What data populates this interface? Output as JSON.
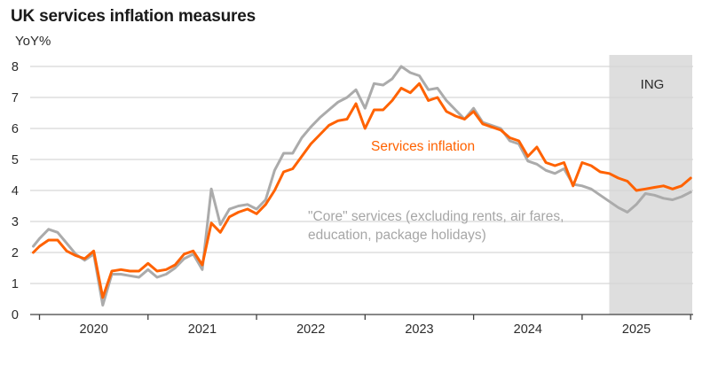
{
  "chart_data": {
    "type": "line",
    "title": "UK services inflation measures",
    "ylabel": "YoY%",
    "xlabel": "",
    "ylim": [
      0,
      8
    ],
    "y_tick_labels": [
      "0",
      "1",
      "2",
      "3",
      "4",
      "5",
      "6",
      "7",
      "8"
    ],
    "x_tick_labels": [
      "2020",
      "2021",
      "2022",
      "2023",
      "2024",
      "2025"
    ],
    "grid": "horizontal",
    "legend_position": "inline-annotations",
    "start_month": "2019-12",
    "frequency": "monthly",
    "forecast_band_start": "2025-04",
    "forecast_band_color": "#DEDEDE",
    "series": [
      {
        "name": "Services inflation",
        "color": "#FF6200",
        "values": [
          2.0,
          2.2,
          2.4,
          2.4,
          2.05,
          1.9,
          1.8,
          2.05,
          0.55,
          1.4,
          1.45,
          1.4,
          1.4,
          1.65,
          1.4,
          1.45,
          1.6,
          1.95,
          2.05,
          1.6,
          2.95,
          2.65,
          3.15,
          3.3,
          3.4,
          3.25,
          3.55,
          4.0,
          4.6,
          4.7,
          5.1,
          5.5,
          5.8,
          6.1,
          6.25,
          6.3,
          6.8,
          6.0,
          6.6,
          6.6,
          6.9,
          7.3,
          7.15,
          7.45,
          6.9,
          7.0,
          6.55,
          6.4,
          6.3,
          6.55,
          6.15,
          6.05,
          5.95,
          5.7,
          5.6,
          5.1,
          5.4,
          4.9,
          4.8,
          4.9,
          4.15,
          4.9,
          4.8,
          4.6,
          4.55,
          4.4,
          4.3,
          4.0,
          4.05,
          4.1,
          4.15,
          4.05,
          4.15,
          4.4
        ]
      },
      {
        "name": "\"Core\" services (excluding rents, air fares, education, package holidays)",
        "color": "#ABABAB",
        "values": [
          2.2,
          2.45,
          2.75,
          2.65,
          2.3,
          1.95,
          1.75,
          1.95,
          0.3,
          1.3,
          1.3,
          1.25,
          1.2,
          1.45,
          1.2,
          1.3,
          1.5,
          1.8,
          1.95,
          1.45,
          4.05,
          2.9,
          3.4,
          3.5,
          3.55,
          3.4,
          3.7,
          4.65,
          5.2,
          5.2,
          5.7,
          6.05,
          6.35,
          6.6,
          6.85,
          7.0,
          7.25,
          6.65,
          7.45,
          7.4,
          7.6,
          8.0,
          7.8,
          7.7,
          7.25,
          7.3,
          6.9,
          6.6,
          6.3,
          6.65,
          6.2,
          6.1,
          6.0,
          5.6,
          5.5,
          4.95,
          4.85,
          4.65,
          4.55,
          4.7,
          4.2,
          4.15,
          4.05,
          3.85,
          3.65,
          3.45,
          3.3,
          3.55,
          3.9,
          3.85,
          3.75,
          3.7,
          3.8,
          3.95
        ]
      }
    ],
    "annotations": {
      "services_label": "Services inflation",
      "core_label_line1": "\"Core\" services (excluding rents, air fares,",
      "core_label_line2": "education, package holidays)",
      "provider_label": "ING"
    }
  }
}
